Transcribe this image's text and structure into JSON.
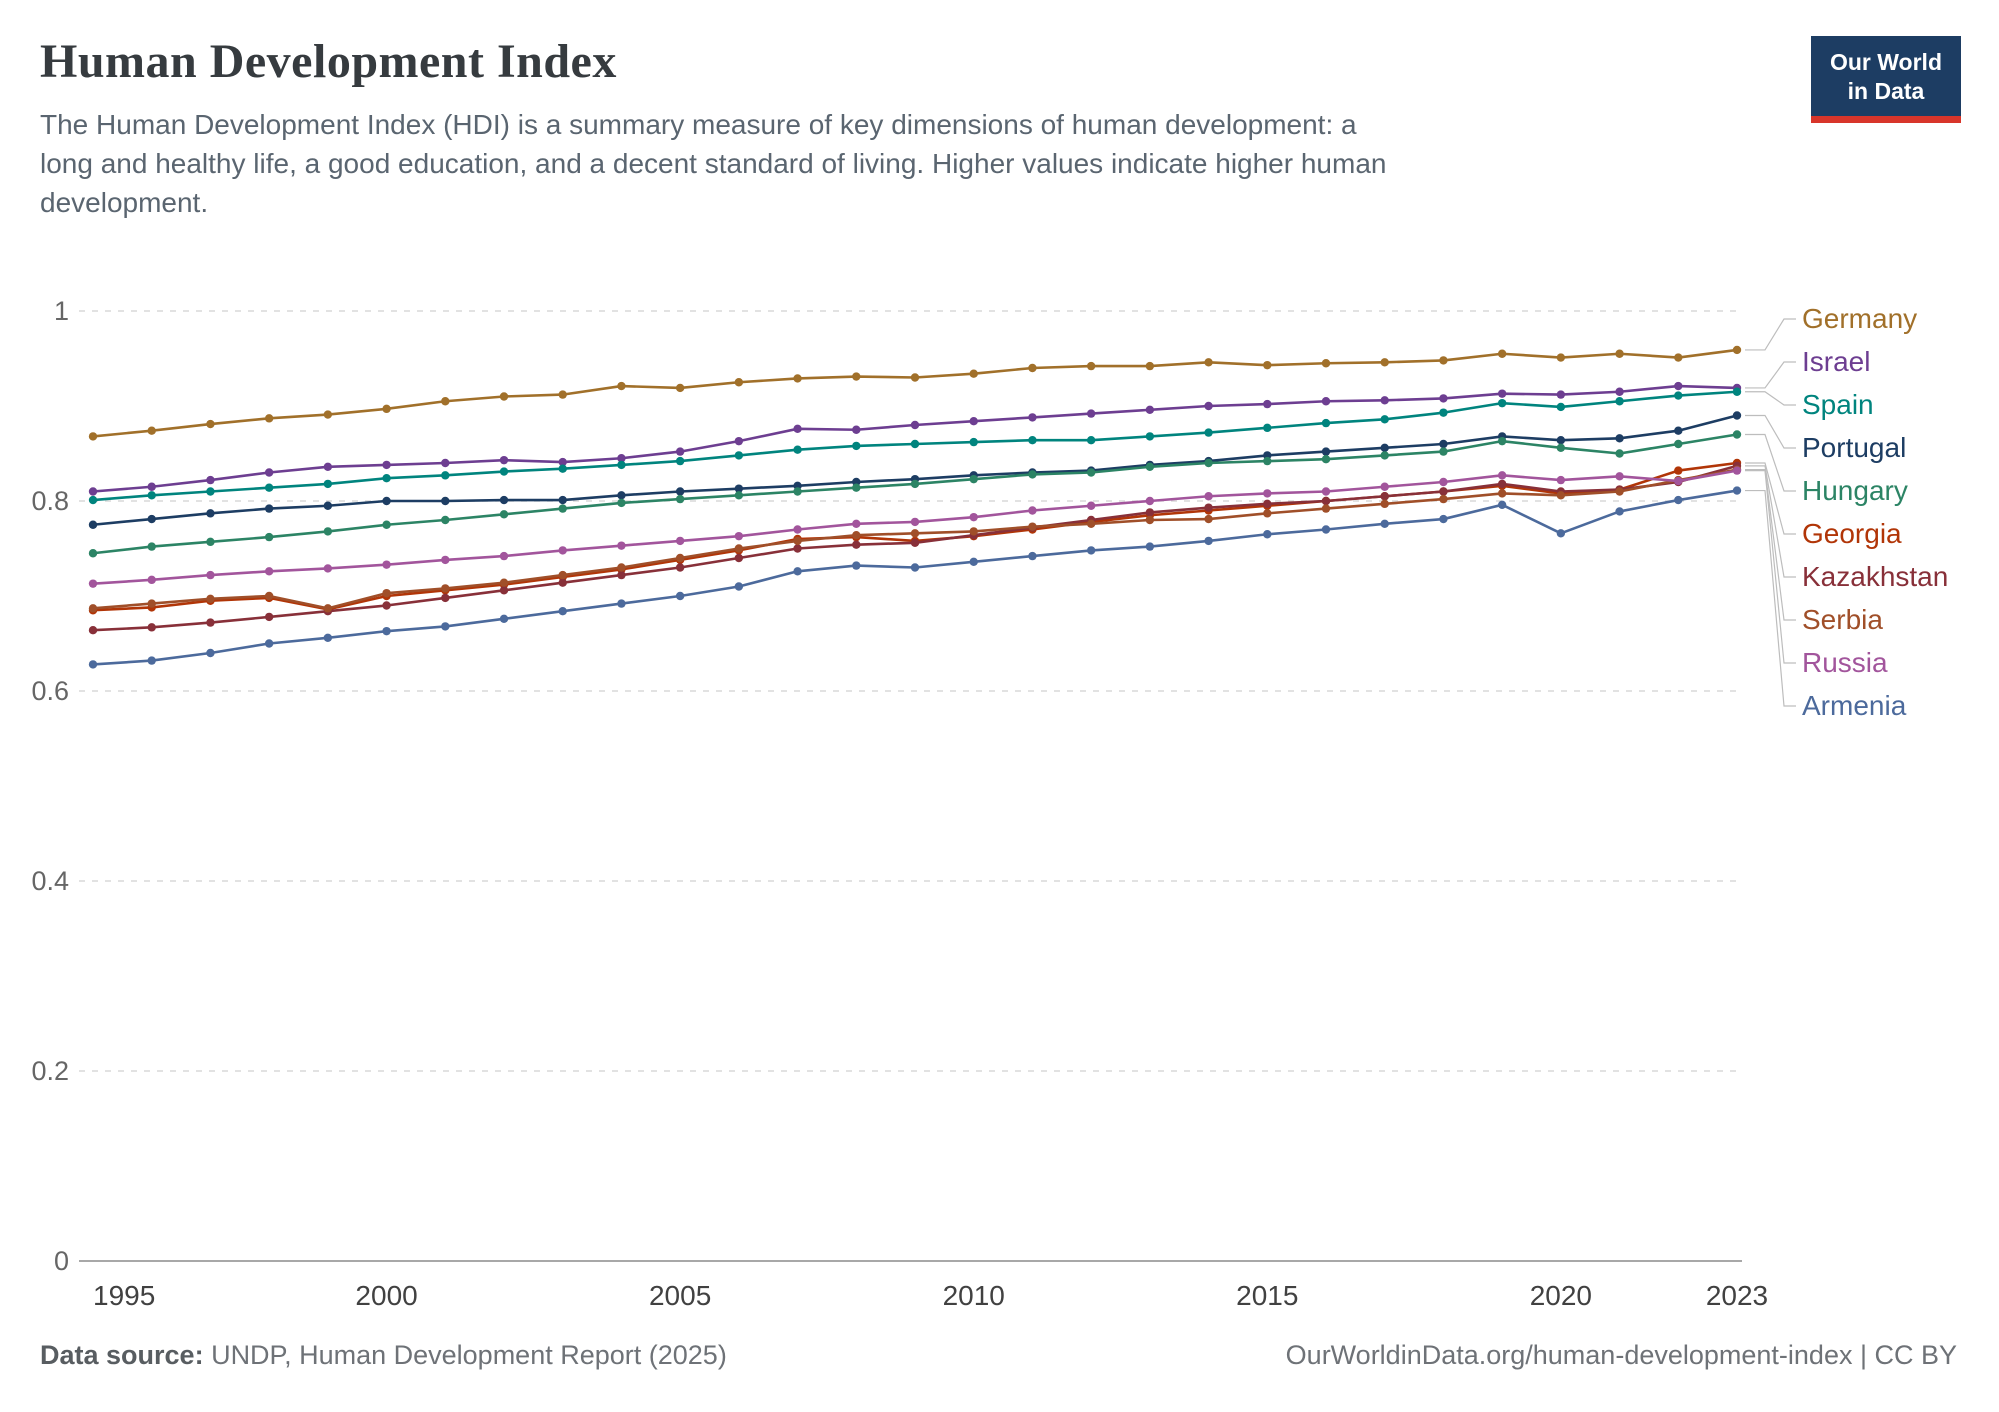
{
  "header": {
    "title": "Human Development Index",
    "subtitle": "The Human Development Index (HDI) is a summary measure of key dimensions of human development: a long and healthy life, a good education, and a decent standard of living. Higher values indicate higher human development.",
    "logo": {
      "line1": "Our World",
      "line2": "in Data",
      "bg_color": "#1d3d63",
      "accent_color": "#d8352a"
    }
  },
  "footer": {
    "source_label": "Data source:",
    "source_text": " UNDP, Human Development Report (2025)",
    "right_text": "OurWorldinData.org/human-development-index | CC BY"
  },
  "chart_data": {
    "type": "line",
    "title": "Human Development Index",
    "xlabel": "",
    "ylabel": "",
    "ylim": [
      0,
      1
    ],
    "yticks": [
      0,
      0.2,
      0.4,
      0.6,
      0.8,
      1
    ],
    "xticks": [
      1995,
      2000,
      2005,
      2010,
      2015,
      2020,
      2023
    ],
    "grid": "horizontal-dashed",
    "legend_position": "right",
    "marker": "dot",
    "x": [
      1995,
      1996,
      1997,
      1998,
      1999,
      2000,
      2001,
      2002,
      2003,
      2004,
      2005,
      2006,
      2007,
      2008,
      2009,
      2010,
      2011,
      2012,
      2013,
      2014,
      2015,
      2016,
      2017,
      2018,
      2019,
      2020,
      2021,
      2022,
      2023
    ],
    "series": [
      {
        "name": "Germany",
        "color": "#A1702A",
        "values": [
          0.868,
          0.874,
          0.881,
          0.887,
          0.891,
          0.897,
          0.905,
          0.91,
          0.912,
          0.921,
          0.919,
          0.925,
          0.929,
          0.931,
          0.93,
          0.934,
          0.94,
          0.942,
          0.942,
          0.946,
          0.943,
          0.945,
          0.946,
          0.948,
          0.955,
          0.951,
          0.955,
          0.951,
          0.959
        ]
      },
      {
        "name": "Israel",
        "color": "#6D3E91",
        "values": [
          0.81,
          0.815,
          0.822,
          0.83,
          0.836,
          0.838,
          0.84,
          0.843,
          0.841,
          0.845,
          0.852,
          0.863,
          0.876,
          0.875,
          0.88,
          0.884,
          0.888,
          0.892,
          0.896,
          0.9,
          0.902,
          0.905,
          0.906,
          0.908,
          0.913,
          0.912,
          0.915,
          0.921,
          0.919
        ]
      },
      {
        "name": "Spain",
        "color": "#00847E",
        "values": [
          0.801,
          0.806,
          0.81,
          0.814,
          0.818,
          0.824,
          0.827,
          0.831,
          0.834,
          0.838,
          0.842,
          0.848,
          0.854,
          0.858,
          0.86,
          0.862,
          0.864,
          0.864,
          0.868,
          0.872,
          0.877,
          0.882,
          0.886,
          0.893,
          0.903,
          0.899,
          0.905,
          0.911,
          0.915
        ]
      },
      {
        "name": "Portugal",
        "color": "#1D3D63",
        "values": [
          0.775,
          0.781,
          0.787,
          0.792,
          0.795,
          0.8,
          0.8,
          0.801,
          0.801,
          0.806,
          0.81,
          0.813,
          0.816,
          0.82,
          0.823,
          0.827,
          0.83,
          0.832,
          0.838,
          0.842,
          0.848,
          0.852,
          0.856,
          0.86,
          0.868,
          0.864,
          0.866,
          0.874,
          0.89
        ]
      },
      {
        "name": "Hungary",
        "color": "#2C8465",
        "values": [
          0.745,
          0.752,
          0.757,
          0.762,
          0.768,
          0.775,
          0.78,
          0.786,
          0.792,
          0.798,
          0.802,
          0.806,
          0.81,
          0.814,
          0.818,
          0.823,
          0.828,
          0.83,
          0.836,
          0.84,
          0.842,
          0.844,
          0.848,
          0.852,
          0.863,
          0.856,
          0.85,
          0.86,
          0.87
        ]
      },
      {
        "name": "Georgia",
        "color": "#B13507",
        "values": [
          0.685,
          0.688,
          0.695,
          0.698,
          0.686,
          0.7,
          0.706,
          0.712,
          0.72,
          0.728,
          0.738,
          0.748,
          0.76,
          0.762,
          0.758,
          0.763,
          0.77,
          0.778,
          0.785,
          0.79,
          0.795,
          0.8,
          0.805,
          0.81,
          0.816,
          0.808,
          0.812,
          0.832,
          0.84
        ]
      },
      {
        "name": "Kazakhstan",
        "color": "#883039",
        "values": [
          0.664,
          0.667,
          0.672,
          0.678,
          0.684,
          0.69,
          0.698,
          0.706,
          0.714,
          0.722,
          0.73,
          0.74,
          0.75,
          0.754,
          0.756,
          0.764,
          0.772,
          0.78,
          0.788,
          0.793,
          0.797,
          0.8,
          0.805,
          0.81,
          0.818,
          0.81,
          0.812,
          0.82,
          0.837
        ]
      },
      {
        "name": "Serbia",
        "color": "#A04F29",
        "values": [
          0.687,
          0.692,
          0.697,
          0.7,
          0.687,
          0.703,
          0.708,
          0.714,
          0.722,
          0.73,
          0.74,
          0.75,
          0.758,
          0.764,
          0.766,
          0.768,
          0.773,
          0.776,
          0.78,
          0.781,
          0.787,
          0.792,
          0.797,
          0.802,
          0.808,
          0.806,
          0.81,
          0.822,
          0.833
        ]
      },
      {
        "name": "Russia",
        "color": "#A2559C",
        "values": [
          0.713,
          0.717,
          0.722,
          0.726,
          0.729,
          0.733,
          0.738,
          0.742,
          0.748,
          0.753,
          0.758,
          0.763,
          0.77,
          0.776,
          0.778,
          0.783,
          0.79,
          0.795,
          0.8,
          0.805,
          0.808,
          0.81,
          0.815,
          0.82,
          0.827,
          0.822,
          0.826,
          0.821,
          0.832
        ]
      },
      {
        "name": "Armenia",
        "color": "#4C6A9C",
        "values": [
          0.628,
          0.632,
          0.64,
          0.65,
          0.656,
          0.663,
          0.668,
          0.676,
          0.684,
          0.692,
          0.7,
          0.71,
          0.726,
          0.732,
          0.73,
          0.736,
          0.742,
          0.748,
          0.752,
          0.758,
          0.765,
          0.77,
          0.776,
          0.781,
          0.796,
          0.766,
          0.789,
          0.801,
          0.811
        ]
      }
    ],
    "axis_colors": {
      "grid": "#d9d9d9",
      "axis": "#8c8c8c",
      "ytick_label": "#666666",
      "xtick_label": "#414141",
      "connector": "#bdbdbd"
    }
  }
}
